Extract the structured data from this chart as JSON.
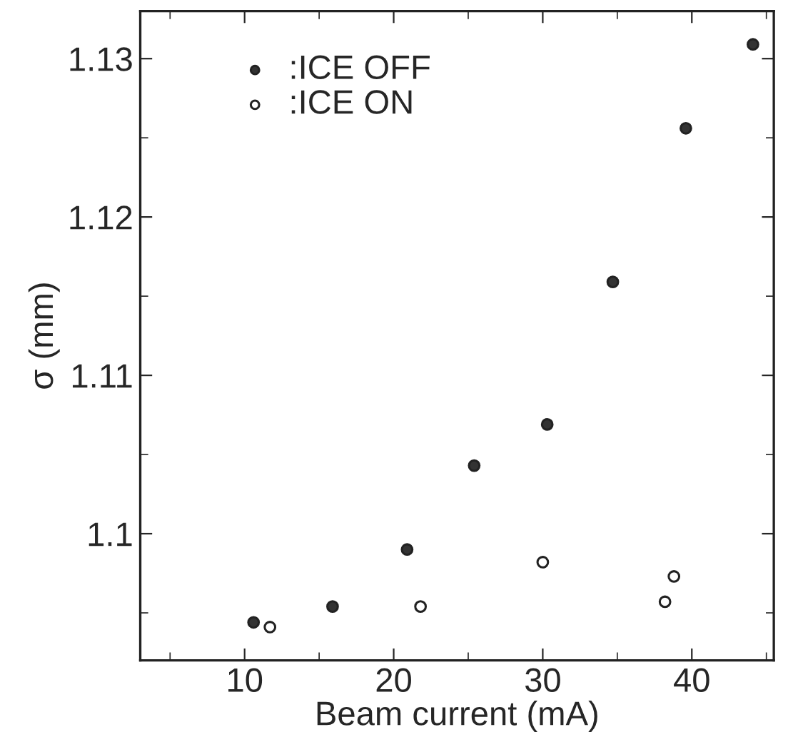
{
  "chart_data": {
    "type": "scatter",
    "xlabel": "Beam current (mA)",
    "ylabel": "σ (mm)",
    "xlim": [
      3,
      45.5
    ],
    "xticks": [
      10,
      20,
      30,
      40
    ],
    "ylim": [
      1.092,
      1.133
    ],
    "yticks": [
      1.1,
      1.11,
      1.12,
      1.13
    ],
    "grid": false,
    "legend": "top left",
    "marker": "circle",
    "series": [
      {
        "name": ":ICE OFF",
        "color": "#333333",
        "x": [
          10.6,
          15.9,
          20.9,
          25.4,
          30.3,
          34.7,
          39.6,
          44.1
        ],
        "values": [
          1.0944,
          1.0954,
          1.099,
          1.1043,
          1.1069,
          1.1159,
          1.1256,
          1.1309
        ]
      },
      {
        "name": ":ICE ON",
        "color": "#ffffff",
        "x": [
          11.7,
          21.8,
          30.0,
          38.2,
          38.8
        ],
        "values": [
          1.0941,
          1.0954,
          1.0982,
          1.0957,
          1.0973
        ]
      }
    ]
  }
}
